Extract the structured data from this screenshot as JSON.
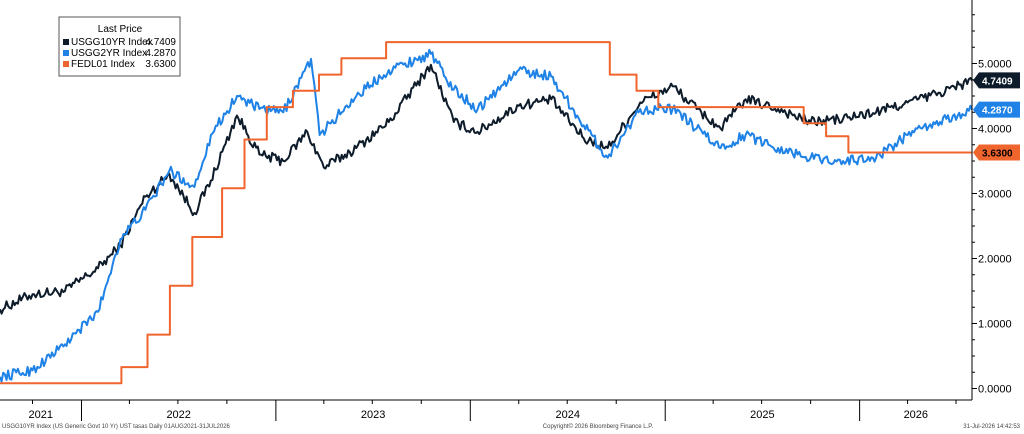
{
  "chart_data": {
    "type": "line",
    "title": "",
    "xlabel": "",
    "ylabel": "",
    "ylim": [
      -0.1,
      5.9
    ],
    "y_ticks": [
      0,
      1,
      2,
      3,
      4,
      5
    ],
    "y_tick_labels": [
      "0.0000",
      "1.0000",
      "2.0000",
      "3.0000",
      "4.0000",
      "5.0000"
    ],
    "x_tick_labels": [
      "2021",
      "2022",
      "2023",
      "2024",
      "2025",
      "2026"
    ],
    "x_range": [
      "2021-08-01",
      "2026-07-31"
    ],
    "grid": false,
    "legend": {
      "title": "Last Price",
      "placement": "top-left",
      "entries": [
        {
          "label": "USGG10YR Index",
          "value": "4.7409"
        },
        {
          "label": "USGG2YR Index",
          "value": "4.2870"
        },
        {
          "label": "FEDL01 Index",
          "value": "3.6300"
        }
      ]
    },
    "series": [
      {
        "name": "USGG10YR Index",
        "color": "#0d1b2a",
        "last": "4.7409",
        "badge_text_color": "#ffffff",
        "x": [
          "2021-08-01",
          "2021-10-01",
          "2021-12-01",
          "2022-02-01",
          "2022-03-15",
          "2022-05-01",
          "2022-06-15",
          "2022-08-01",
          "2022-09-01",
          "2022-10-20",
          "2022-12-01",
          "2023-01-15",
          "2023-03-01",
          "2023-04-01",
          "2023-06-01",
          "2023-08-01",
          "2023-10-19",
          "2023-12-01",
          "2024-01-15",
          "2024-04-01",
          "2024-06-01",
          "2024-08-01",
          "2024-09-15",
          "2024-11-15",
          "2025-01-15",
          "2025-03-01",
          "2025-04-15",
          "2025-06-01",
          "2025-08-01",
          "2025-10-01",
          "2025-12-01",
          "2026-02-01",
          "2026-04-01",
          "2026-06-01",
          "2026-07-31"
        ],
        "y": [
          1.22,
          1.45,
          1.5,
          1.85,
          2.2,
          2.95,
          3.3,
          2.7,
          3.2,
          4.2,
          3.6,
          3.5,
          3.95,
          3.4,
          3.7,
          4.1,
          4.98,
          4.1,
          3.95,
          4.35,
          4.45,
          3.85,
          3.7,
          4.4,
          4.65,
          4.3,
          4.0,
          4.45,
          4.3,
          4.1,
          4.15,
          4.25,
          4.4,
          4.55,
          4.74
        ]
      },
      {
        "name": "USGG2YR Index",
        "color": "#1e82e6",
        "last": "4.2870",
        "badge_text_color": "#ffffff",
        "x": [
          "2021-08-01",
          "2021-10-01",
          "2021-12-01",
          "2022-02-01",
          "2022-03-15",
          "2022-05-01",
          "2022-06-15",
          "2022-08-01",
          "2022-09-01",
          "2022-10-20",
          "2022-12-01",
          "2023-01-15",
          "2023-03-08",
          "2023-03-24",
          "2023-06-01",
          "2023-08-01",
          "2023-10-19",
          "2023-12-01",
          "2024-01-15",
          "2024-04-01",
          "2024-06-01",
          "2024-08-01",
          "2024-09-15",
          "2024-11-15",
          "2025-01-15",
          "2025-03-01",
          "2025-04-15",
          "2025-06-01",
          "2025-08-01",
          "2025-10-01",
          "2025-12-01",
          "2026-02-01",
          "2026-04-01",
          "2026-06-01",
          "2026-07-31"
        ],
        "y": [
          0.18,
          0.28,
          0.68,
          1.18,
          2.3,
          2.75,
          3.35,
          3.1,
          3.9,
          4.5,
          4.3,
          4.25,
          5.07,
          3.9,
          4.5,
          4.9,
          5.15,
          4.6,
          4.3,
          4.9,
          4.8,
          4.05,
          3.55,
          4.3,
          4.3,
          4.0,
          3.7,
          3.9,
          3.7,
          3.55,
          3.5,
          3.55,
          3.9,
          4.1,
          4.29
        ]
      },
      {
        "name": "FEDL01 Index",
        "color": "#f0642d",
        "last": "3.6300",
        "badge_text_color": "#000000",
        "step": true,
        "x": [
          "2021-08-01",
          "2022-03-17",
          "2022-05-05",
          "2022-06-16",
          "2022-07-28",
          "2022-09-22",
          "2022-11-03",
          "2022-12-15",
          "2023-02-02",
          "2023-03-23",
          "2023-05-04",
          "2023-07-27",
          "2024-09-19",
          "2024-11-08",
          "2024-12-19",
          "2025-09-18",
          "2025-10-30",
          "2025-12-11",
          "2026-07-31"
        ],
        "y": [
          0.08,
          0.33,
          0.83,
          1.58,
          2.33,
          3.08,
          3.83,
          4.33,
          4.58,
          4.83,
          5.08,
          5.33,
          4.83,
          4.58,
          4.33,
          4.08,
          3.88,
          3.63,
          3.63
        ]
      }
    ]
  },
  "footer": {
    "left": "USGG10YR Index (US Generic Govt 10 Yr) UST tasas Daily 01AUG2021-31JUL2026",
    "center": "Copyright© 2026 Bloomberg Finance L.P.",
    "right": "31-Jul-2026 14:42:53"
  }
}
